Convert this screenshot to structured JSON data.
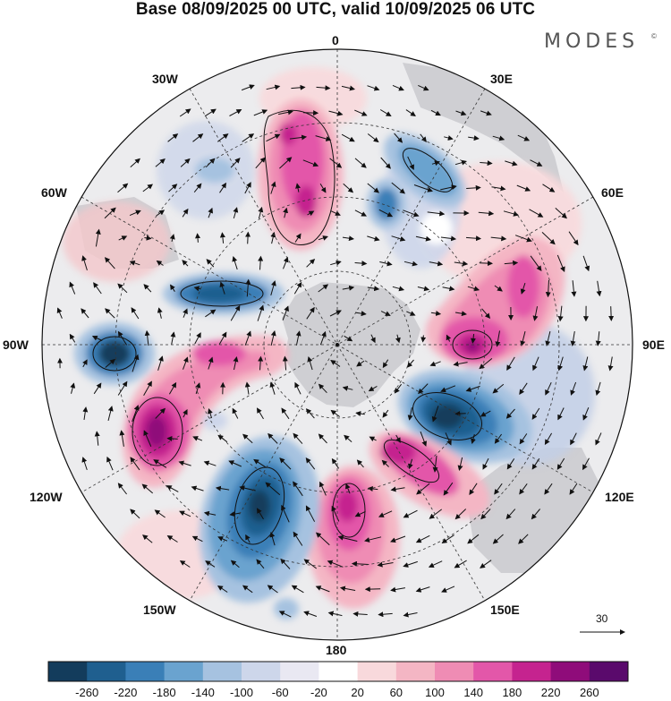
{
  "title": "Base 08/09/2025 00 UTC, valid 10/09/2025 06 UTC",
  "brand": "MODES",
  "brand_mark": "©",
  "longitude_labels": {
    "lon_0": "0",
    "lon_30e": "30E",
    "lon_60e": "60E",
    "lon_90e": "90E",
    "lon_120e": "120E",
    "lon_150e": "150E",
    "lon_180": "180",
    "lon_150w": "150W",
    "lon_120w": "120W",
    "lon_90w": "90W",
    "lon_60w": "60W",
    "lon_30w": "30W"
  },
  "vector_scale_label": "30",
  "colorbar": {
    "ticks": [
      "-260",
      "-220",
      "-180",
      "-140",
      "-100",
      "-60",
      "-20",
      "20",
      "60",
      "100",
      "140",
      "180",
      "220",
      "260"
    ],
    "colors": [
      "#133c5c",
      "#1f5f8f",
      "#3a7fb7",
      "#6aa3cf",
      "#a6c2e0",
      "#cdd6ea",
      "#e9e8f2",
      "#ffffff",
      "#f8d9dc",
      "#f4b6c4",
      "#ef8cb4",
      "#e357a9",
      "#c5238f",
      "#8f0c7a",
      "#5a0a6c"
    ]
  },
  "colors": {
    "map_background": "#ececee",
    "land": "#cfcfd3",
    "grid": "#333333"
  }
}
